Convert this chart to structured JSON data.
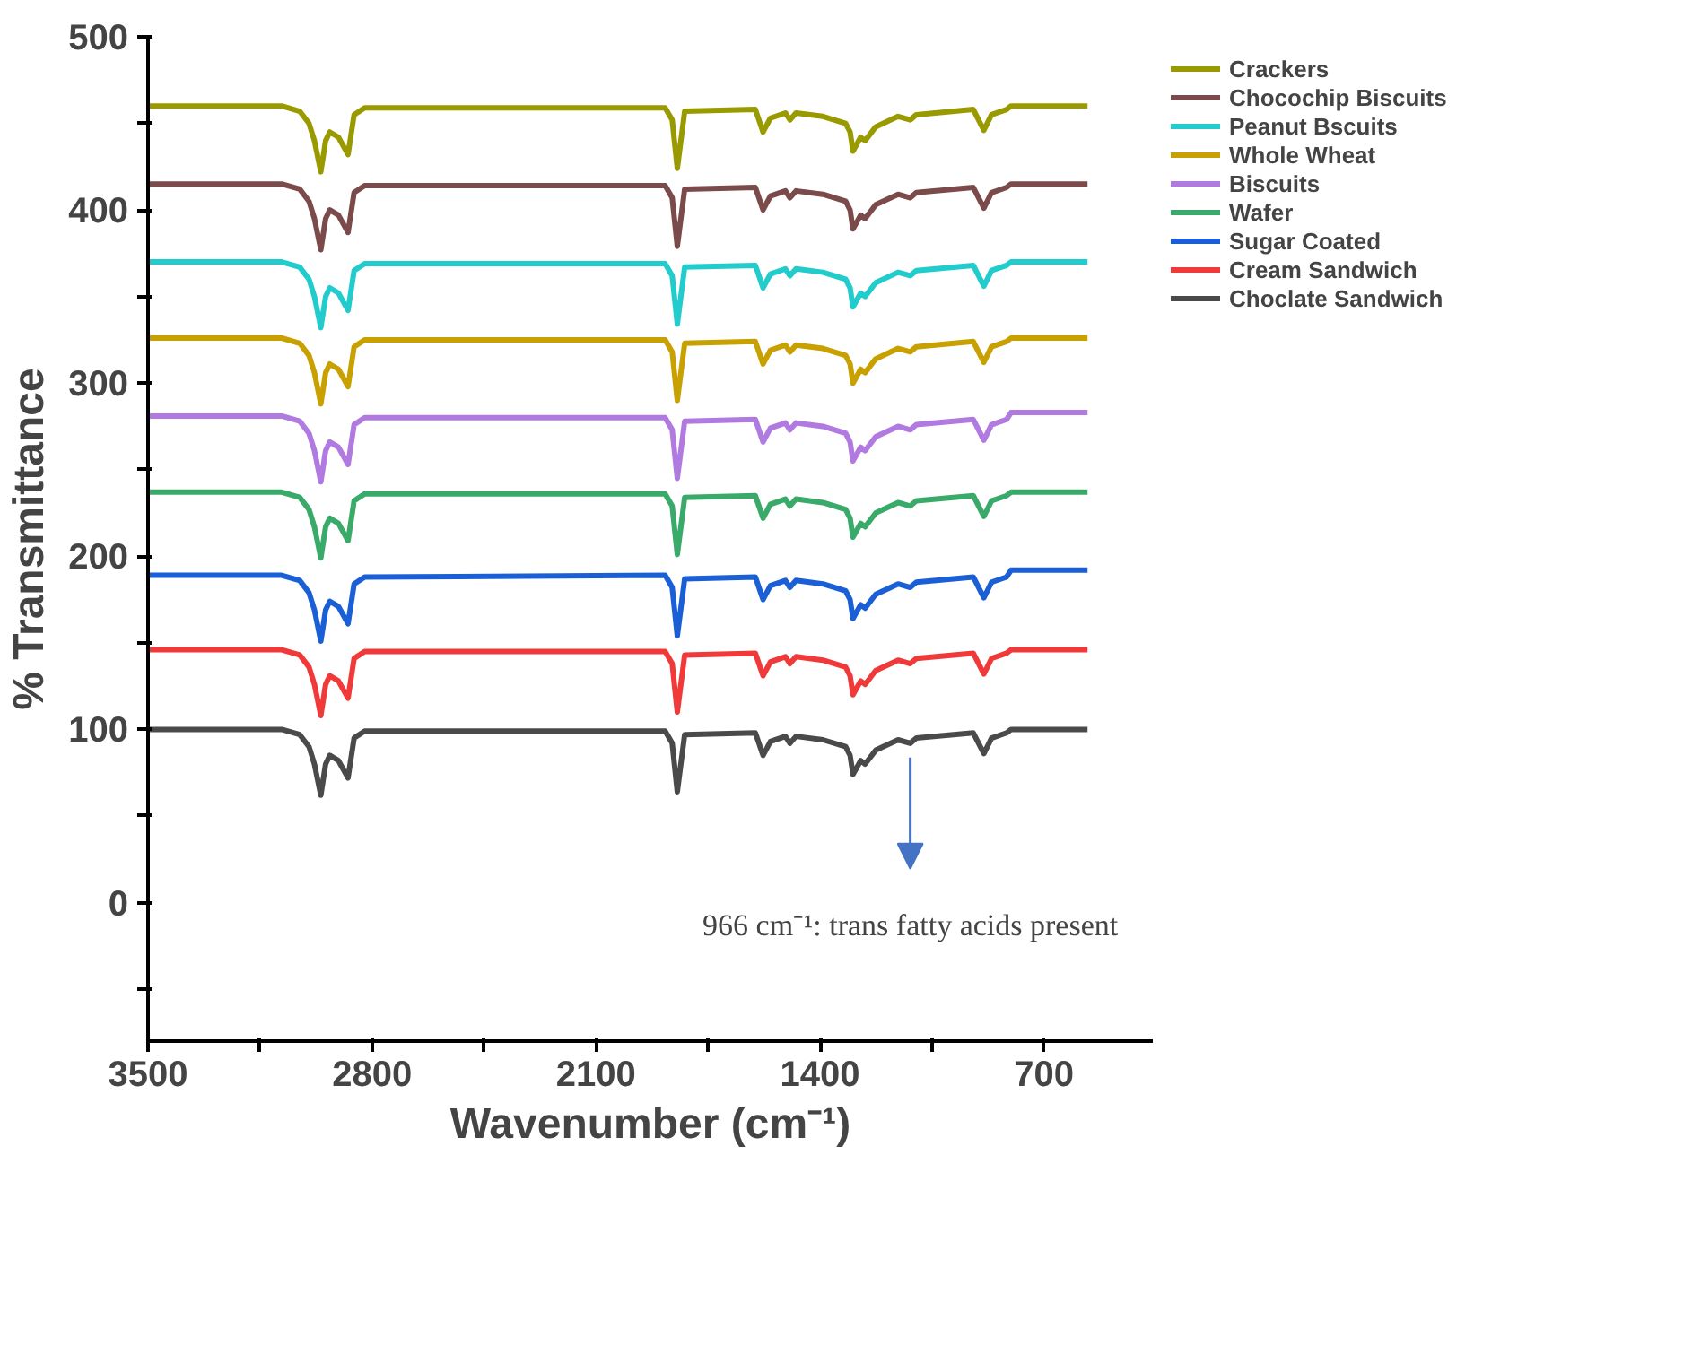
{
  "chart_data": {
    "type": "line",
    "xlabel": "Wavenumber (cm⁻¹)",
    "ylabel": "% Transmittance",
    "xlim": [
      3500,
      360
    ],
    "ylim": [
      -80,
      500
    ],
    "xticks": [
      3500,
      {
        "value": 3150,
        "label": null
      },
      2800,
      {
        "value": 2450,
        "label": null
      },
      2100,
      {
        "value": 1750,
        "label": null
      },
      1400,
      {
        "value": 1050,
        "label": null
      },
      700
    ],
    "yticks": [
      {
        "value": -50,
        "label": null
      },
      0,
      {
        "value": 50,
        "label": null
      },
      100,
      {
        "value": 150,
        "label": null
      },
      200,
      {
        "value": 250,
        "label": null
      },
      300,
      {
        "value": 350,
        "label": null
      },
      400,
      {
        "value": 450,
        "label": null
      },
      500
    ],
    "grid": false,
    "legend": "top right",
    "line_style": "solid",
    "x": [
      3500,
      3082,
      3026,
      2997,
      2980,
      2960,
      2945,
      2932,
      2905,
      2875,
      2856,
      2823,
      1884,
      1862,
      1846,
      1823,
      1602,
      1578,
      1555,
      1508,
      1494,
      1475,
      1391,
      1320,
      1306,
      1297,
      1273,
      1259,
      1226,
      1156,
      1118,
      1099,
      921,
      888,
      864,
      817,
      803,
      564
    ],
    "series": [
      {
        "name": "Crackers",
        "color": "#999900",
        "values": [
          460,
          460,
          457,
          450,
          440,
          422,
          440,
          445,
          442,
          432,
          455,
          459,
          459,
          452,
          424,
          457,
          458,
          445,
          453,
          456,
          452,
          456,
          454,
          450,
          445,
          434,
          442,
          440,
          448,
          454,
          452,
          455,
          458,
          446,
          455,
          458,
          460,
          460
        ]
      },
      {
        "name": "Chocochip Biscuits",
        "color": "#7b4a4a",
        "values": [
          415,
          415,
          412,
          405,
          395,
          377,
          395,
          400,
          397,
          387,
          410,
          414,
          414,
          407,
          379,
          412,
          413,
          400,
          408,
          411,
          407,
          411,
          409,
          405,
          400,
          389,
          397,
          395,
          403,
          409,
          407,
          410,
          413,
          401,
          410,
          413,
          415,
          415
        ]
      },
      {
        "name": "Peanut Bscuits",
        "color": "#22cccc",
        "values": [
          370,
          370,
          367,
          360,
          350,
          332,
          350,
          355,
          352,
          342,
          365,
          369,
          369,
          362,
          334,
          367,
          368,
          355,
          363,
          366,
          362,
          366,
          364,
          360,
          355,
          344,
          352,
          350,
          358,
          364,
          362,
          365,
          368,
          356,
          365,
          368,
          370,
          370
        ]
      },
      {
        "name": "Whole Wheat",
        "color": "#c8a000",
        "values": [
          326,
          326,
          323,
          316,
          306,
          288,
          306,
          311,
          308,
          298,
          321,
          325,
          325,
          318,
          290,
          323,
          324,
          311,
          319,
          322,
          318,
          322,
          320,
          316,
          311,
          300,
          308,
          306,
          314,
          320,
          318,
          321,
          324,
          312,
          321,
          324,
          326,
          326
        ]
      },
      {
        "name": "Biscuits",
        "color": "#b07ae0",
        "values": [
          281,
          281,
          278,
          271,
          261,
          243,
          261,
          266,
          263,
          253,
          276,
          280,
          280,
          273,
          245,
          278,
          279,
          266,
          274,
          277,
          273,
          277,
          275,
          271,
          266,
          255,
          263,
          261,
          269,
          275,
          273,
          276,
          279,
          267,
          276,
          279,
          283,
          283
        ]
      },
      {
        "name": "Wafer",
        "color": "#3aaa6a",
        "values": [
          237,
          237,
          234,
          227,
          217,
          199,
          217,
          222,
          219,
          209,
          232,
          236,
          236,
          229,
          201,
          234,
          235,
          222,
          230,
          233,
          229,
          233,
          231,
          227,
          222,
          211,
          219,
          217,
          225,
          231,
          229,
          232,
          235,
          223,
          232,
          235,
          237,
          237
        ]
      },
      {
        "name": "Sugar Coated",
        "color": "#1a5fd6",
        "values": [
          189,
          189,
          186,
          179,
          169,
          151,
          169,
          174,
          171,
          161,
          184,
          188,
          189,
          182,
          154,
          187,
          188,
          175,
          183,
          186,
          182,
          186,
          184,
          180,
          175,
          164,
          172,
          170,
          178,
          184,
          182,
          185,
          188,
          176,
          185,
          188,
          192,
          192
        ]
      },
      {
        "name": "Cream Sandwich",
        "color": "#f03a3a",
        "values": [
          146,
          146,
          143,
          136,
          126,
          108,
          126,
          131,
          128,
          118,
          141,
          145,
          145,
          138,
          110,
          143,
          144,
          131,
          139,
          142,
          138,
          142,
          140,
          136,
          131,
          120,
          128,
          126,
          134,
          140,
          138,
          141,
          144,
          132,
          141,
          144,
          146,
          146
        ]
      },
      {
        "name": "Choclate Sandwich",
        "color": "#4a4a4a",
        "values": [
          100,
          100,
          97,
          90,
          80,
          62,
          80,
          85,
          82,
          72,
          95,
          99,
          99,
          92,
          64,
          97,
          98,
          85,
          93,
          96,
          92,
          96,
          94,
          90,
          85,
          74,
          82,
          80,
          88,
          94,
          92,
          95,
          98,
          86,
          95,
          98,
          100,
          100
        ]
      }
    ],
    "annotations": [
      {
        "text": "966 cm⁻¹: trans fatty acids present",
        "x": 1118,
        "y": 92
      }
    ]
  }
}
